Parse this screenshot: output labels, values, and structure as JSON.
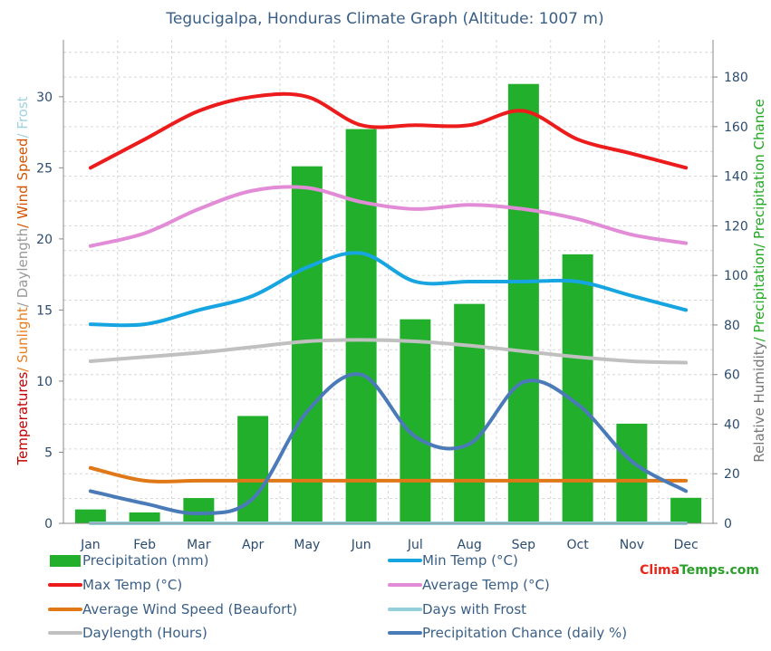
{
  "chart_data": {
    "type": "bar+line",
    "title": "Tegucigalpa, Honduras Climate Graph (Altitude: 1007 m)",
    "categories": [
      "Jan",
      "Feb",
      "Mar",
      "Apr",
      "May",
      "Jun",
      "Jul",
      "Aug",
      "Sep",
      "Oct",
      "Nov",
      "Dec"
    ],
    "left_axis": {
      "label_parts": [
        {
          "text": "Temperatures",
          "color": "#c00000"
        },
        {
          "text": "/ Sunlight",
          "color": "#e67e22"
        },
        {
          "text": "/ Daylength",
          "color": "#999999"
        },
        {
          "text": "/ Wind Speed",
          "color": "#d35400"
        },
        {
          "text": "/ Frost",
          "color": "#9fd3df"
        }
      ],
      "ylim": [
        0,
        34
      ],
      "ticks": [
        0,
        5,
        10,
        15,
        20,
        25,
        30
      ]
    },
    "right_axis": {
      "label_parts": [
        {
          "text": "Relative Humidity",
          "color": "#777777"
        },
        {
          "text": "/ Precipitation",
          "color": "#22aa22"
        },
        {
          "text": "/ Precipitation Chance",
          "color": "#22aa22"
        }
      ],
      "ylim": [
        0,
        195
      ],
      "ticks": [
        0,
        20,
        40,
        60,
        80,
        100,
        120,
        140,
        160,
        180
      ]
    },
    "series": [
      {
        "name": "Precipitation (mm)",
        "kind": "bar",
        "axis": "right",
        "color": "#22b02c",
        "values": [
          5.6,
          4.4,
          10.2,
          43.3,
          144,
          159,
          82.3,
          88.5,
          177.2,
          108.5,
          40.2,
          10.3
        ]
      },
      {
        "name": "Min Temp (°C)",
        "kind": "line",
        "axis": "left",
        "color": "#16a5e0",
        "values": [
          14,
          14,
          15,
          16,
          18,
          19,
          17,
          17,
          17,
          17,
          16,
          15
        ]
      },
      {
        "name": "Max Temp (°C)",
        "kind": "line",
        "axis": "left",
        "color": "#ec1c1c",
        "values": [
          25,
          27,
          29,
          30,
          30,
          28,
          28,
          28,
          29,
          27,
          26,
          25
        ]
      },
      {
        "name": "Average Temp (°C)",
        "kind": "line",
        "axis": "left",
        "color": "#e28bd6",
        "values": [
          19.5,
          20.4,
          22.1,
          23.4,
          23.6,
          22.6,
          22.1,
          22.4,
          22.1,
          21.4,
          20.3,
          19.7
        ]
      },
      {
        "name": "Average Wind Speed (Beaufort)",
        "kind": "line",
        "axis": "left",
        "color": "#e07818",
        "values": [
          3.9,
          3,
          3,
          3,
          3,
          3,
          3,
          3,
          3,
          3,
          3,
          3
        ]
      },
      {
        "name": "Days with Frost",
        "kind": "line",
        "axis": "left",
        "color": "#96cfdc",
        "values": [
          0,
          0,
          0,
          0,
          0,
          0,
          0,
          0,
          0,
          0,
          0,
          0
        ]
      },
      {
        "name": "Daylength (Hours)",
        "kind": "line",
        "axis": "left",
        "color": "#c0c0c0",
        "values": [
          11.4,
          11.7,
          12.0,
          12.4,
          12.8,
          12.9,
          12.8,
          12.5,
          12.1,
          11.7,
          11.4,
          11.3
        ]
      },
      {
        "name": "Precipitation Chance (daily %)",
        "kind": "line",
        "axis": "right",
        "color": "#4a7ab8",
        "values": [
          13,
          8,
          4,
          10,
          45,
          60,
          35,
          32,
          57,
          48,
          25,
          13
        ]
      }
    ],
    "grid": true,
    "legend_position": "bottom",
    "watermark": "ClimaTemps.com"
  }
}
